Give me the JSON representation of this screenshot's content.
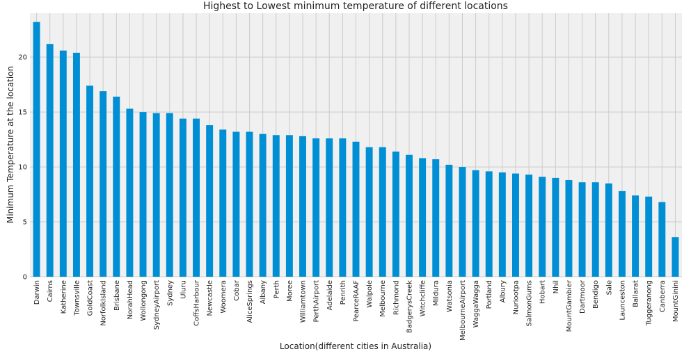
{
  "chart_data": {
    "type": "bar",
    "title": "Highest to Lowest minimum temperature of different locations",
    "xlabel": "Location(different cities in Australia)",
    "ylabel": "Minimum Temperature at the location",
    "ylim": [
      0,
      24
    ],
    "yticks": [
      0,
      5,
      10,
      15,
      20
    ],
    "grid": true,
    "bar_color": "#008fd5",
    "background_color": "#f0f0f0",
    "grid_color": "#cbcbcb",
    "categories": [
      "Darwin",
      "Cairns",
      "Katherine",
      "Townsville",
      "GoldCoast",
      "NorfolkIsland",
      "Brisbane",
      "NorahHead",
      "Wollongong",
      "SydneyAirport",
      "Sydney",
      "Uluru",
      "CoffsHarbour",
      "Newcastle",
      "Woomera",
      "Cobar",
      "AliceSprings",
      "Albany",
      "Perth",
      "Moree",
      "Williamtown",
      "PerthAirport",
      "Adelaide",
      "Penrith",
      "PearceRAAF",
      "Walpole",
      "Melbourne",
      "Richmond",
      "BadgerysCreek",
      "Witchcliffe",
      "Mildura",
      "Watsonia",
      "MelbourneAirport",
      "WaggaWagga",
      "Portland",
      "Albury",
      "Nuriootpa",
      "SalmonGums",
      "Hobart",
      "Nhil",
      "MountGambier",
      "Dartmoor",
      "Bendigo",
      "Sale",
      "Launceston",
      "Ballarat",
      "Tuggeranong",
      "Canberra",
      "MountGinini"
    ],
    "values": [
      23.2,
      21.2,
      20.6,
      20.4,
      17.4,
      16.9,
      16.4,
      15.3,
      15.0,
      14.9,
      14.9,
      14.4,
      14.4,
      13.8,
      13.4,
      13.2,
      13.2,
      13.0,
      12.9,
      12.9,
      12.8,
      12.6,
      12.6,
      12.6,
      12.3,
      11.8,
      11.8,
      11.4,
      11.1,
      10.8,
      10.7,
      10.2,
      10.0,
      9.7,
      9.6,
      9.5,
      9.4,
      9.3,
      9.1,
      9.0,
      8.8,
      8.6,
      8.6,
      8.5,
      7.8,
      7.4,
      7.3,
      6.8,
      3.6
    ]
  }
}
